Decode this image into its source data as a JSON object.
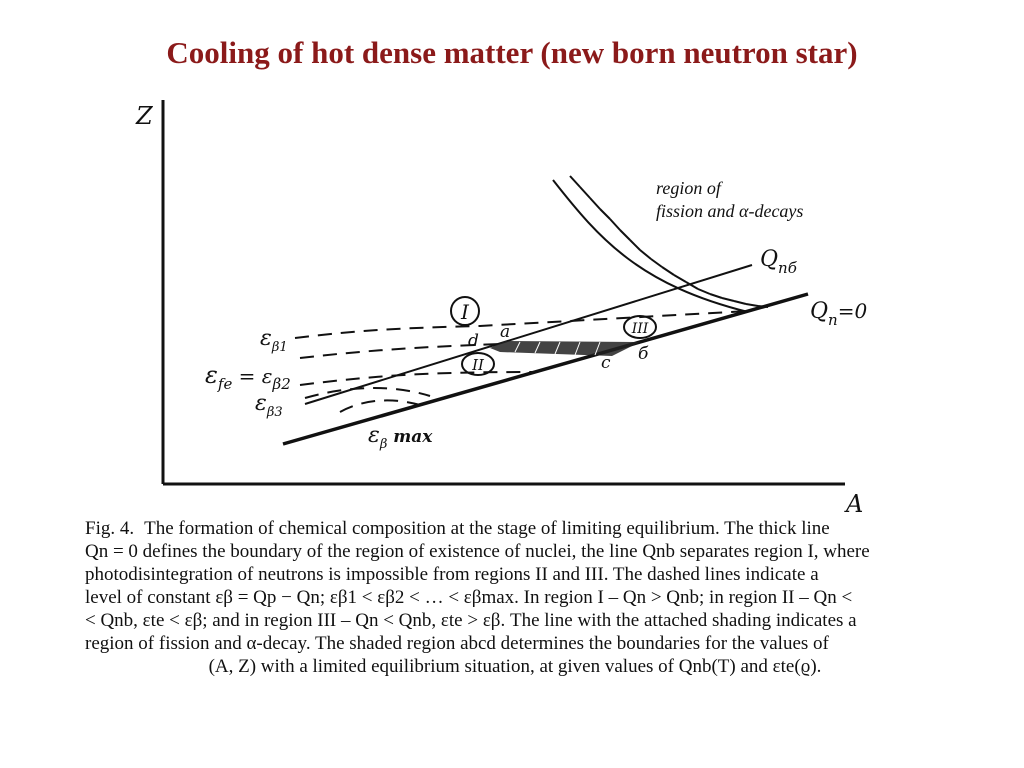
{
  "slide": {
    "title": "Cooling of hot dense matter (new born neutron star)"
  },
  "diagram": {
    "axes": {
      "y_label": "Z",
      "x_label": "A"
    },
    "labels": {
      "fission_region_line1": "region of",
      "fission_region_line2": "fission and α-decays",
      "q_nb": "Q",
      "q_nb_sub": "nб",
      "q_n_zero": "Q",
      "q_n_zero_sub": "n",
      "q_n_zero_rest": "=0",
      "eps_b1": "ε",
      "eps_b1_sub": "β1",
      "eps_fe_b2": "ε",
      "eps_fe_b2_sub": "fe",
      "eps_fe_b2_mid": " = ε",
      "eps_fe_b2_sub2": "β2",
      "eps_b3": "ε",
      "eps_b3_sub": "β3",
      "eps_bmax": "ε",
      "eps_bmax_sub": "β",
      "eps_bmax_rest": " max",
      "region_1": "I",
      "region_2": "II",
      "region_3": "III",
      "point_a": "a",
      "point_b": "б",
      "point_c": "c",
      "point_d": "d"
    }
  },
  "caption": {
    "fig_label": "Fig. 4.",
    "line1": "The formation of chemical composition at the stage of limiting equilibrium. The thick line",
    "line2": "Qn = 0 defines the boundary of the region of existence of nuclei, the line Qnb separates region I, where",
    "line3": "photodisintegration of neutrons is impossible from regions II and III. The dashed lines indicate a",
    "line4": "level of constant εβ = Qp − Qn; εβ1 < εβ2 < … < εβmax. In region I – Qn > Qnb; in region II – Qn <",
    "line5": "< Qnb, εte < εβ; and in region III – Qn < Qnb, εte > εβ. The line with the attached shading indicates a",
    "line6": "region of fission and α-decay. The shaded region abcd determines the boundaries for the values of",
    "line7": "(A, Z) with a limited equilibrium situation, at given values of Qnb(T) and εte(ϱ)."
  }
}
